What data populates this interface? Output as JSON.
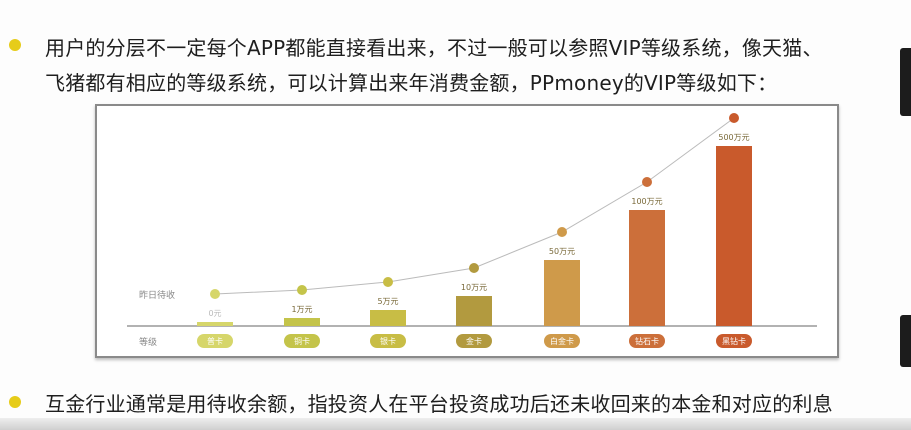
{
  "slide": {
    "line1": "用户的分层不一定每个APP都能直接看出来，不过一般可以参照VIP等级系统，像天猫、",
    "line2": "飞猪都有相应的等级系统，可以计算出来年消费金额，PPmoney的VIP等级如下：",
    "line3": "互金行业通常是用待收余额，指投资人在平台投资成功后还未收回来的本金和对应的利息",
    "bullet_color": "#e6cc1a"
  },
  "chart_data": {
    "type": "bar",
    "row_labels": {
      "value": "昨日待收",
      "level": "等级"
    },
    "categories": [
      "普卡",
      "铜卡",
      "银卡",
      "金卡",
      "白金卡",
      "钻石卡",
      "黑钻卡"
    ],
    "values": [
      0,
      1,
      5,
      10,
      50,
      100,
      500
    ],
    "unit": "万元",
    "value_labels": [
      "0元",
      "1万元",
      "5万元",
      "10万元",
      "50万元",
      "100万元",
      "500万元"
    ],
    "overlay": "line with dot markers following bar tops",
    "colors": [
      "#d6d66a",
      "#c4c44a",
      "#c8bd45",
      "#b29a3f",
      "#cf9a4a",
      "#cc6f3a",
      "#c95a2c"
    ],
    "grid": false
  }
}
